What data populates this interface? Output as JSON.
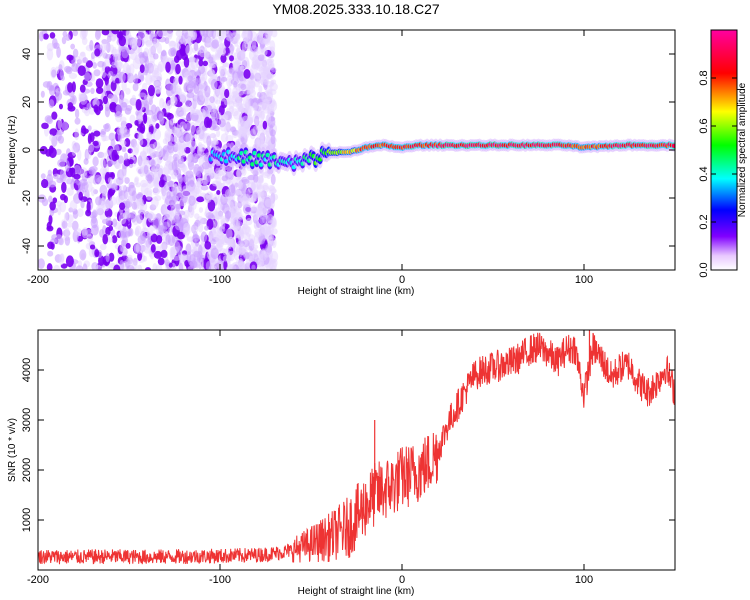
{
  "title": "YM08.2025.333.10.18.C27",
  "chart_data": [
    {
      "type": "heatmap",
      "title": "YM08.2025.333.10.18.C27",
      "xlabel": "Height of straight line (km)",
      "ylabel": "Frequency (Hz)",
      "xlim": [
        -200,
        150
      ],
      "ylim": [
        -50,
        50
      ],
      "x_ticks": [
        -200,
        -100,
        0,
        100
      ],
      "y_ticks": [
        -40,
        -20,
        0,
        20,
        40
      ],
      "colorbar": {
        "label": "Normalized spectral amplitude",
        "range": [
          0,
          1
        ],
        "ticks": [
          "0.0",
          "0.2",
          "0.4",
          "0.6",
          "0.8"
        ],
        "colors": [
          "#ffffff",
          "#e8c8ff",
          "#8000ff",
          "#0000ff",
          "#00ffff",
          "#00ff00",
          "#ffff00",
          "#ff0000",
          "#ff00a0"
        ]
      },
      "features": {
        "noise_region_x": [
          -200,
          -65
        ],
        "dominant_band": {
          "x": [
            -105,
            -90,
            -75,
            -60,
            -50,
            -40,
            -30,
            -20,
            -10,
            0,
            10,
            30,
            60,
            90,
            100,
            120,
            150
          ],
          "freq": [
            -2,
            -3,
            -4,
            -6,
            -4,
            -1,
            -1,
            1,
            2,
            1,
            2,
            2,
            2,
            2,
            1,
            2,
            2
          ],
          "amplitude": [
            0.35,
            0.45,
            0.45,
            0.4,
            0.5,
            0.6,
            0.7,
            0.8,
            0.85,
            0.9,
            0.85,
            0.95,
            0.95,
            0.9,
            0.8,
            0.95,
            0.9
          ]
        }
      }
    },
    {
      "type": "line",
      "xlabel": "Height of straight line (km)",
      "ylabel": "SNR (10 * v/v)",
      "xlim": [
        -200,
        150
      ],
      "ylim": [
        0,
        4800
      ],
      "x_ticks": [
        -200,
        -100,
        0,
        100
      ],
      "y_ticks": [
        1000,
        2000,
        3000,
        4000
      ],
      "color": "#ee3333",
      "series": [
        {
          "name": "SNR",
          "x": [
            -200,
            -180,
            -160,
            -140,
            -120,
            -100,
            -90,
            -80,
            -70,
            -60,
            -50,
            -40,
            -30,
            -25,
            -20,
            -15,
            -10,
            -5,
            0,
            5,
            10,
            15,
            20,
            25,
            30,
            35,
            40,
            45,
            50,
            55,
            60,
            65,
            70,
            75,
            80,
            85,
            90,
            95,
            100,
            105,
            110,
            115,
            120,
            125,
            130,
            135,
            140,
            145,
            150
          ],
          "y": [
            270,
            260,
            270,
            260,
            270,
            280,
            290,
            300,
            330,
            400,
            520,
            650,
            850,
            1050,
            1300,
            1500,
            1600,
            1700,
            1850,
            1900,
            2000,
            2150,
            2400,
            2900,
            3250,
            3600,
            3900,
            4000,
            4050,
            4100,
            4150,
            4250,
            4400,
            4450,
            4350,
            4150,
            4400,
            4450,
            3500,
            4450,
            4200,
            3850,
            4050,
            4100,
            3750,
            3550,
            3750,
            4050,
            3550
          ]
        }
      ],
      "annotations": [
        {
          "x": -15,
          "y": 3000,
          "note": "spike"
        },
        {
          "x": 103,
          "y": 4800,
          "note": "spike"
        }
      ]
    }
  ]
}
